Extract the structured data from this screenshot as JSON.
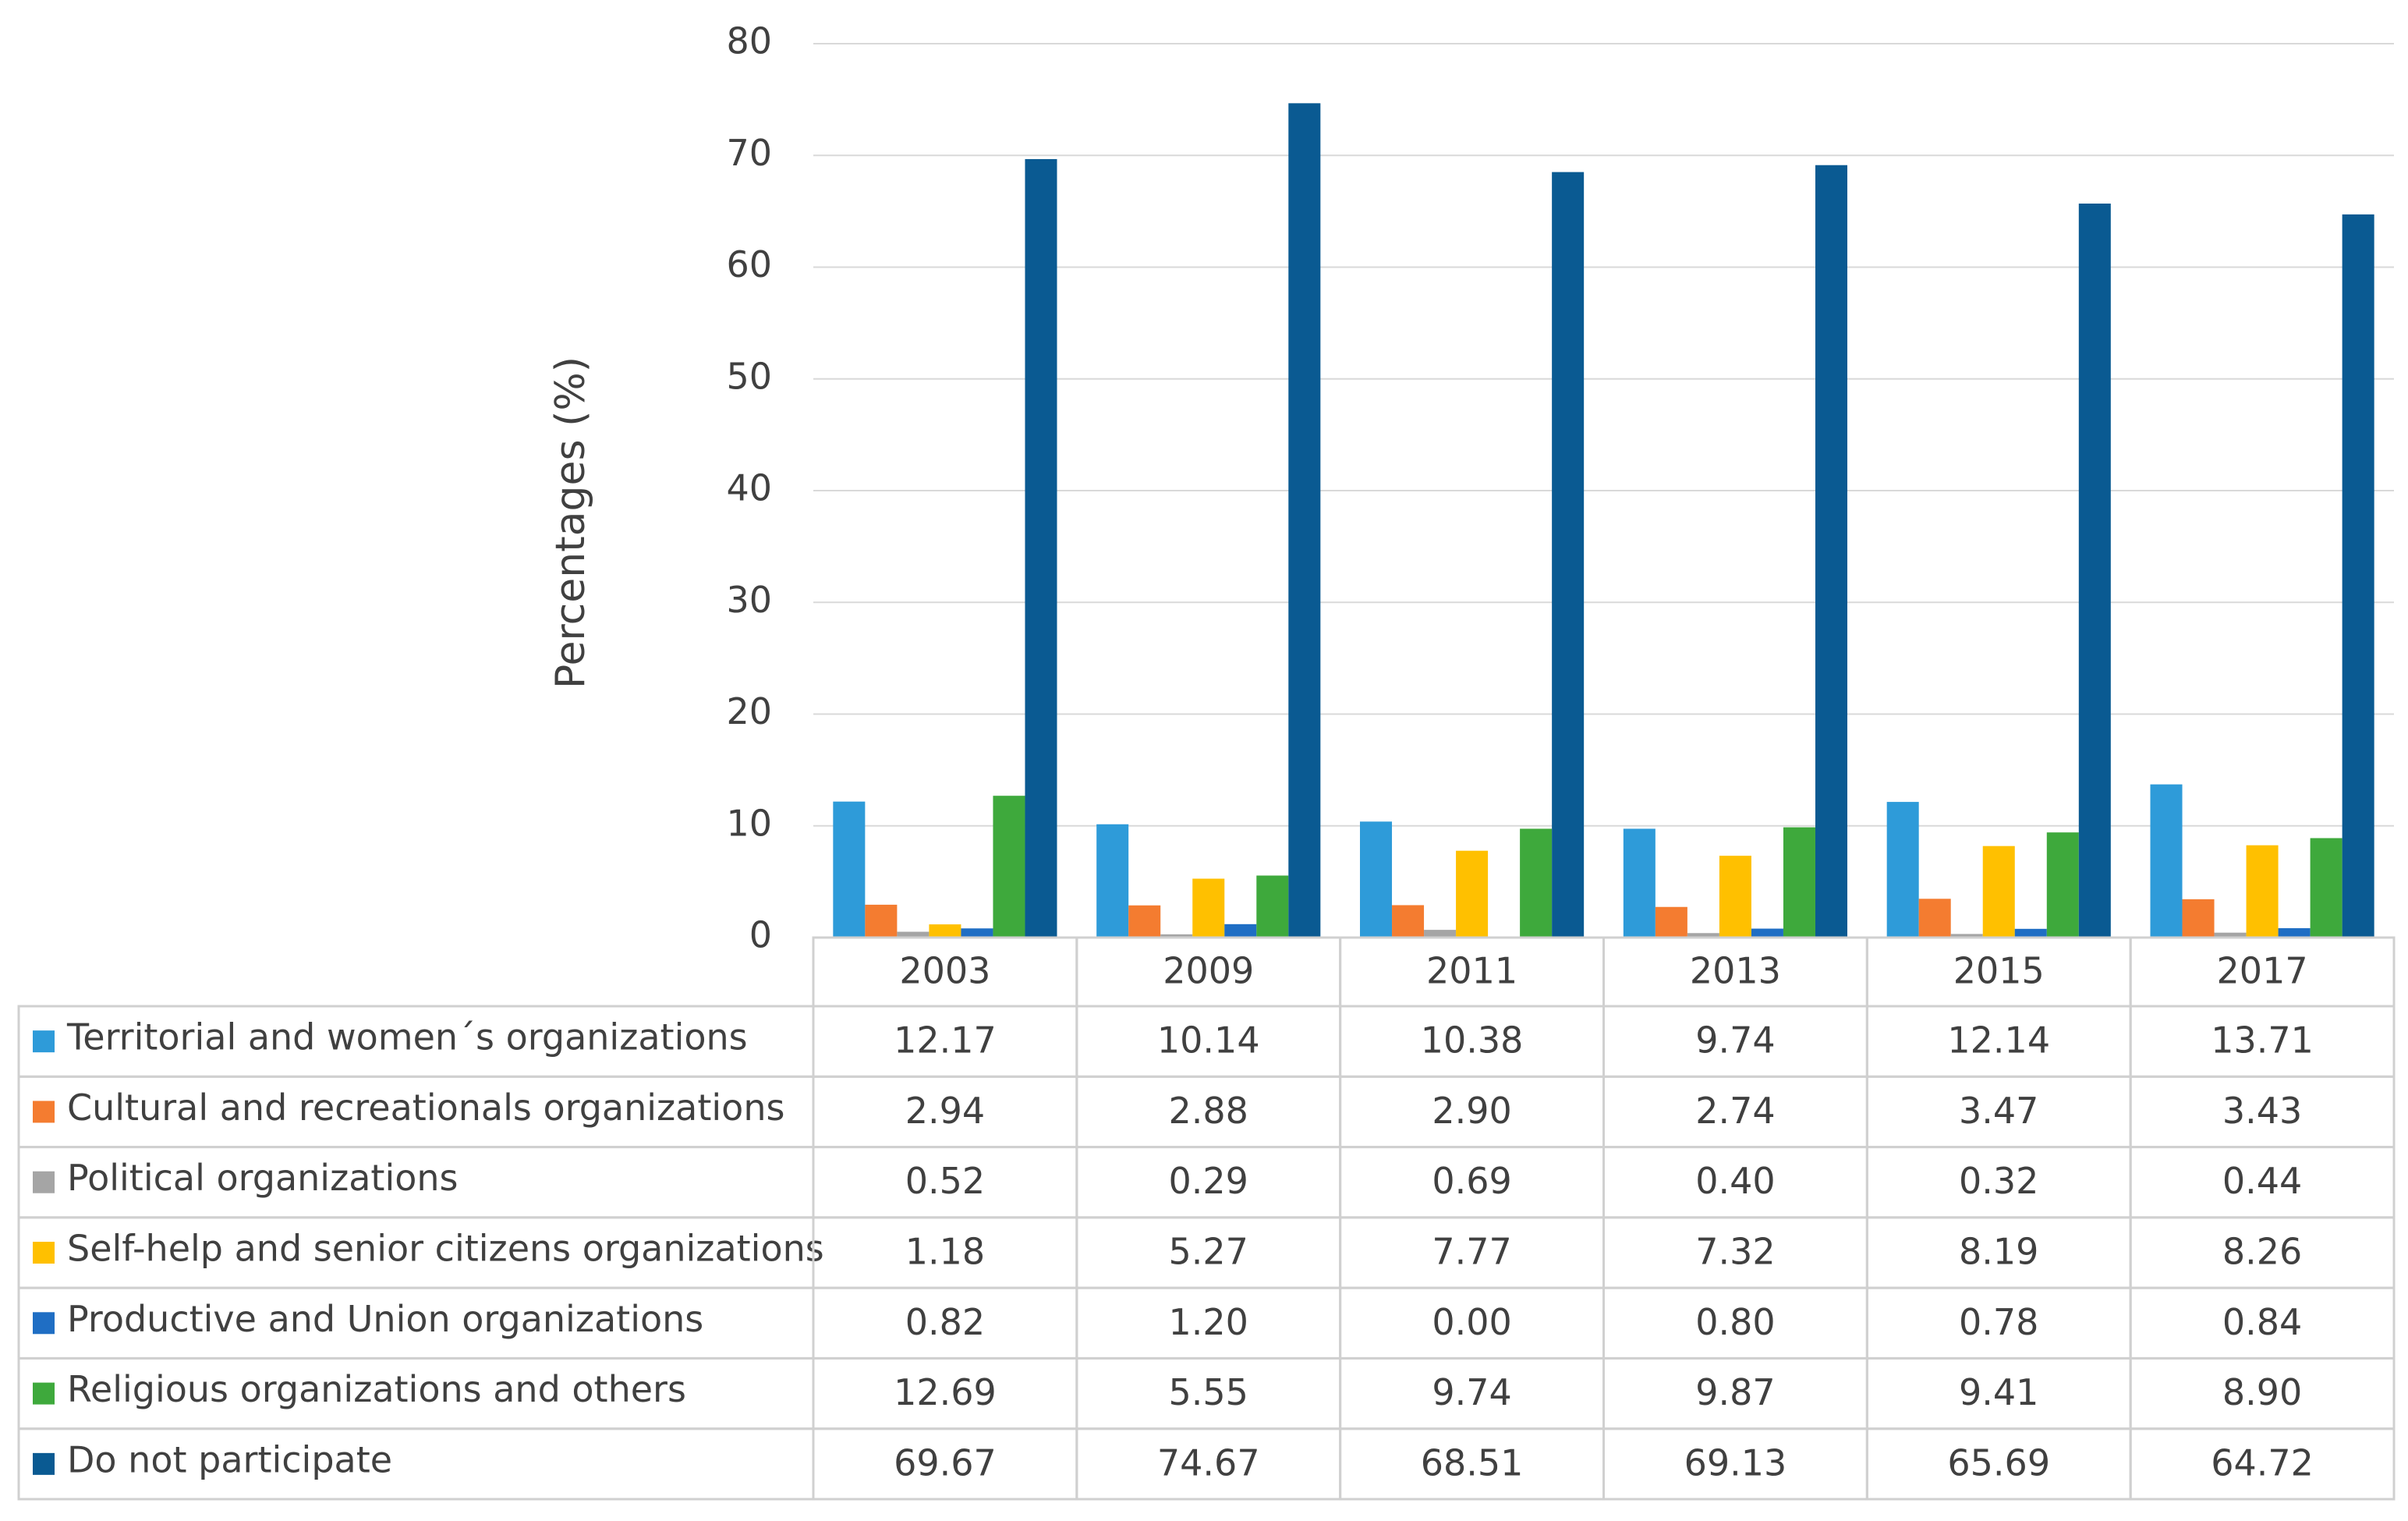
{
  "chart_data": {
    "type": "bar",
    "y_label": "Percentages (%)",
    "categories": [
      "2003",
      "2009",
      "2011",
      "2013",
      "2015",
      "2017"
    ],
    "series": [
      {
        "name": "Territorial and women´s organizations",
        "color": "#2e9bd9",
        "values": [
          12.17,
          10.14,
          10.38,
          9.74,
          12.14,
          13.71
        ],
        "value_labels": [
          "12.17",
          "10.14",
          "10.38",
          "9.74",
          "12.14",
          "13.71"
        ]
      },
      {
        "name": "Cultural and recreationals organizations",
        "color": "#f47c30",
        "values": [
          2.94,
          2.88,
          2.9,
          2.74,
          3.47,
          3.43
        ],
        "value_labels": [
          "2.94",
          "2.88",
          "2.90",
          "2.74",
          "3.47",
          "3.43"
        ]
      },
      {
        "name": "Political organizations",
        "color": "#a5a5a5",
        "values": [
          0.52,
          0.29,
          0.69,
          0.4,
          0.32,
          0.44
        ],
        "value_labels": [
          "0.52",
          "0.29",
          "0.69",
          "0.40",
          "0.32",
          "0.44"
        ]
      },
      {
        "name": "Self-help and senior citizens organizations",
        "color": "#ffc000",
        "values": [
          1.18,
          5.27,
          7.77,
          7.32,
          8.19,
          8.26
        ],
        "value_labels": [
          "1.18",
          "5.27",
          "7.77",
          "7.32",
          "8.19",
          "8.26"
        ]
      },
      {
        "name": "Productive and Union organizations",
        "color": "#1f6ec4",
        "values": [
          0.82,
          1.2,
          0,
          0.8,
          0.78,
          0.84
        ],
        "value_labels": [
          "0.82",
          "1.20",
          "0.00",
          "0.80",
          "0.78",
          "0.84"
        ]
      },
      {
        "name": "Religious organizations and others",
        "color": "#3ea93c",
        "values": [
          12.69,
          5.55,
          9.74,
          9.87,
          9.41,
          8.9
        ],
        "value_labels": [
          "12.69",
          "5.55",
          "9.74",
          "9.87",
          "9.41",
          "8.90"
        ]
      },
      {
        "name": "Do not participate",
        "color": "#0a5a92",
        "values": [
          69.67,
          74.67,
          68.51,
          69.13,
          65.69,
          64.72
        ],
        "value_labels": [
          "69.67",
          "74.67",
          "68.51",
          "69.13",
          "65.69",
          "64.72"
        ]
      }
    ],
    "ylim": [
      0,
      80
    ],
    "yticks": [
      0,
      10,
      20,
      30,
      40,
      50,
      60,
      70,
      80
    ],
    "grid": true
  }
}
